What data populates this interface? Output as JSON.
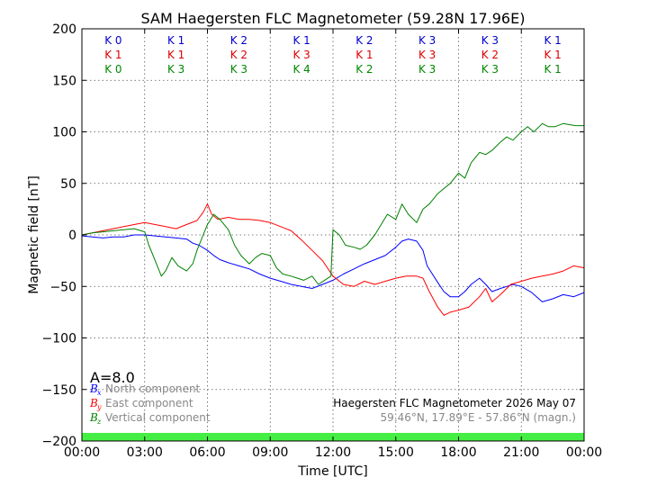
{
  "chart_data": {
    "type": "line",
    "title": "SAM Haegersten FLC Magnetometer (59.28N 17.96E)",
    "xlabel": "Time [UTC]",
    "ylabel": "Magnetic field [nT]",
    "xlim": [
      0,
      24
    ],
    "ylim": [
      -200,
      200
    ],
    "grid": true,
    "x_ticks": [
      0,
      3,
      6,
      9,
      12,
      15,
      18,
      21,
      24
    ],
    "x_tick_labels": [
      "00:00",
      "03:00",
      "06:00",
      "09:00",
      "12:00",
      "15:00",
      "18:00",
      "21:00",
      "00:00"
    ],
    "y_ticks": [
      -200,
      -150,
      -100,
      -50,
      0,
      50,
      100,
      150,
      200
    ],
    "y_tick_labels": [
      "−200",
      "−150",
      "−100",
      "−50",
      "0",
      "50",
      "100",
      "150",
      "200"
    ],
    "k_indices": {
      "north": {
        "color": "#0000cc",
        "labels": [
          "K 0",
          "K 1",
          "K 2",
          "K 1",
          "K 2",
          "K 3",
          "K 3",
          "K 1"
        ]
      },
      "east": {
        "color": "#dd0000",
        "labels": [
          "K 1",
          "K 1",
          "K 2",
          "K 3",
          "K 1",
          "K 3",
          "K 2",
          "K 1"
        ]
      },
      "vertical": {
        "color": "#008800",
        "labels": [
          "K 0",
          "K 3",
          "K 3",
          "K 4",
          "K 2",
          "K 3",
          "K 3",
          "K 1"
        ]
      }
    },
    "a_index": "A=8.0",
    "legend": {
      "position": "lower-left",
      "entries": [
        {
          "symbol": "B",
          "sub": "x",
          "label": "North component",
          "color": "#0000ff"
        },
        {
          "symbol": "B",
          "sub": "y",
          "label": "East component",
          "color": "#ff0000"
        },
        {
          "symbol": "B",
          "sub": "z",
          "label": "Vertical component",
          "color": "#008000"
        }
      ]
    },
    "info": {
      "station_date": "Haegersten FLC Magnetometer 2026 May 07",
      "coords": "59.46°N, 17.89°E - 57.86°N (magn.)"
    },
    "activity_bar": {
      "color": "#44ee44",
      "level": "quiet"
    },
    "series": [
      {
        "name": "North component",
        "color": "#0000ff",
        "x": [
          0,
          0.5,
          1,
          1.5,
          2,
          2.5,
          3,
          3.5,
          4,
          4.5,
          5,
          5.3,
          5.6,
          6,
          6.3,
          6.6,
          7,
          7.5,
          8,
          8.5,
          9,
          9.5,
          10,
          10.5,
          11,
          11.5,
          12,
          12.5,
          13,
          13.5,
          14,
          14.5,
          15,
          15.3,
          15.6,
          16,
          16.3,
          16.5,
          17,
          17.3,
          17.6,
          18,
          18.3,
          18.6,
          19,
          19.3,
          19.6,
          20,
          20.3,
          20.6,
          21,
          21.5,
          22,
          22.5,
          23,
          23.5,
          24
        ],
        "y": [
          -1,
          -2,
          -3,
          -2,
          -2,
          0,
          0,
          -1,
          -2,
          -3,
          -4,
          -8,
          -10,
          -15,
          -20,
          -24,
          -27,
          -30,
          -33,
          -38,
          -42,
          -45,
          -48,
          -50,
          -52,
          -48,
          -44,
          -38,
          -33,
          -28,
          -24,
          -20,
          -12,
          -6,
          -4,
          -6,
          -15,
          -30,
          -46,
          -55,
          -60,
          -60,
          -55,
          -48,
          -42,
          -48,
          -55,
          -52,
          -50,
          -48,
          -50,
          -56,
          -65,
          -62,
          -58,
          -60,
          -56
        ]
      },
      {
        "name": "East component",
        "color": "#ff0000",
        "x": [
          0,
          0.5,
          1,
          1.5,
          2,
          2.5,
          3,
          3.5,
          4,
          4.5,
          5,
          5.5,
          5.8,
          6,
          6.2,
          6.5,
          7,
          7.5,
          8,
          8.5,
          9,
          9.5,
          10,
          10.5,
          11,
          11.5,
          12,
          12.5,
          13,
          13.5,
          14,
          14.5,
          15,
          15.5,
          16,
          16.3,
          16.6,
          17,
          17.3,
          17.6,
          18,
          18.5,
          19,
          19.3,
          19.6,
          20,
          20.5,
          21,
          21.5,
          22,
          22.5,
          23,
          23.5,
          24
        ],
        "y": [
          0,
          2,
          4,
          6,
          8,
          10,
          12,
          10,
          8,
          6,
          10,
          14,
          22,
          30,
          20,
          15,
          17,
          15,
          15,
          14,
          12,
          8,
          4,
          -5,
          -15,
          -25,
          -40,
          -48,
          -50,
          -45,
          -48,
          -45,
          -42,
          -40,
          -40,
          -42,
          -55,
          -70,
          -78,
          -75,
          -73,
          -70,
          -60,
          -52,
          -65,
          -58,
          -48,
          -45,
          -42,
          -40,
          -38,
          -35,
          -30,
          -32
        ]
      },
      {
        "name": "Vertical component",
        "color": "#008000",
        "x": [
          0,
          0.5,
          1,
          1.5,
          2,
          2.5,
          3,
          3.2,
          3.5,
          3.8,
          4,
          4.3,
          4.6,
          5,
          5.3,
          5.5,
          5.8,
          6,
          6.3,
          6.6,
          7,
          7.3,
          7.6,
          8,
          8.3,
          8.6,
          9,
          9.3,
          9.6,
          10,
          10.3,
          10.6,
          11,
          11.3,
          11.6,
          11.9,
          12,
          12.3,
          12.6,
          13,
          13.3,
          13.6,
          14,
          14.3,
          14.6,
          15,
          15.3,
          15.6,
          16,
          16.3,
          16.6,
          17,
          17.3,
          17.6,
          18,
          18.3,
          18.6,
          19,
          19.3,
          19.6,
          20,
          20.3,
          20.6,
          21,
          21.3,
          21.6,
          22,
          22.3,
          22.6,
          23,
          23.3,
          23.6,
          24
        ],
        "y": [
          0,
          2,
          3,
          4,
          5,
          6,
          3,
          -10,
          -25,
          -40,
          -35,
          -22,
          -30,
          -35,
          -28,
          -15,
          0,
          10,
          20,
          15,
          5,
          -10,
          -20,
          -28,
          -22,
          -18,
          -20,
          -32,
          -38,
          -40,
          -42,
          -44,
          -40,
          -48,
          -44,
          -40,
          5,
          0,
          -10,
          -12,
          -14,
          -10,
          0,
          10,
          20,
          15,
          30,
          20,
          12,
          25,
          30,
          40,
          45,
          50,
          60,
          55,
          70,
          80,
          78,
          82,
          90,
          95,
          92,
          100,
          105,
          100,
          108,
          105,
          105,
          108,
          107,
          106,
          106
        ]
      }
    ]
  }
}
